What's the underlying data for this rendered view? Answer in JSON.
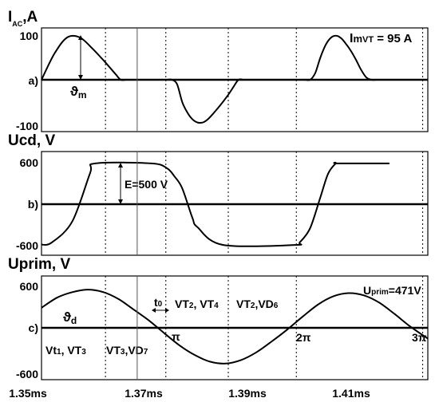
{
  "chart_data": [
    {
      "type": "line",
      "title": "I<sub>AC</sub>,A",
      "title_main": "I",
      "title_sub": "AC",
      "title_unit": ",A",
      "label": "a)",
      "yticks": [
        "100",
        "-100"
      ],
      "ylim": [
        -100,
        100
      ],
      "xlim_ms": [
        1.35,
        1.4255
      ],
      "series": [
        {
          "x_ms": [
            1.35,
            1.3525,
            1.355,
            1.3575,
            1.36,
            1.3625,
            1.3645,
            1.3655,
            1.3665,
            1.3675,
            1.3685,
            1.3695,
            1.3705,
            1.3715,
            1.3725,
            1.3735,
            1.3745,
            1.3755,
            1.3765,
            1.3775,
            1.3785,
            1.3795,
            1.3805,
            1.3815,
            1.3825,
            1.3835,
            1.3845,
            1.3855,
            1.3865,
            1.3875,
            1.3885,
            1.3895,
            1.3905,
            1.3915,
            1.3925,
            1.3935,
            1.3945,
            1.3955,
            1.3965,
            1.3975,
            1.3985,
            1.3995,
            1.4005,
            1.4015,
            1.4025,
            1.4035,
            1.4045,
            1.4055,
            1.4065,
            1.4075,
            1.4085,
            1.4095,
            1.4105,
            1.4115,
            1.4125,
            1.4135,
            1.4145,
            1.4155,
            1.4165,
            1.4175,
            1.4255
          ],
          "y": [
            0,
            57,
            93,
            93,
            68,
            38,
            12,
            0,
            0,
            0,
            0,
            0,
            0,
            0,
            0,
            0,
            0,
            0,
            -10,
            -49,
            -72,
            -87,
            -94,
            -94,
            -87,
            -75,
            -62,
            -48,
            -33,
            -16,
            0,
            0,
            0,
            0,
            0,
            0,
            0,
            0,
            0,
            0,
            0,
            0,
            0,
            0,
            0,
            15,
            49,
            76,
            92,
            97,
            92,
            79,
            63,
            43,
            21,
            5,
            0,
            0,
            0,
            0,
            0
          ]
        }
      ],
      "annotations": [
        "ϑm",
        "ImVT = 95 A"
      ],
      "ann_theta": "ϑ",
      "ann_theta_sub": "m",
      "ann_imvt_main": "I",
      "ann_imvt_m": "m",
      "ann_imvt_sub": "VT",
      "ann_imvt_rest": " = 95 A"
    },
    {
      "type": "line",
      "title": "Ucd, V",
      "label": "b)",
      "yticks": [
        "600",
        "-600"
      ],
      "ylim": [
        -600,
        600
      ],
      "xlim_ms": [
        1.35,
        1.4255
      ],
      "series": [
        {
          "x_ms": [
            1.35,
            1.352,
            1.356,
            1.3595,
            1.3605,
            1.3715,
            1.3745,
            1.376,
            1.3775,
            1.3795,
            1.3805,
            1.3855,
            1.3995,
            1.4005,
            1.4025,
            1.4045,
            1.406,
            1.4075,
            1.408,
            1.418
          ],
          "y": [
            -585,
            -555,
            -250,
            450,
            590,
            590,
            520,
            400,
            230,
            -200,
            -333,
            -590,
            -590,
            -550,
            -345,
            100,
            440,
            590,
            590,
            590
          ]
        }
      ],
      "annotations": [
        "E=500 V"
      ]
    },
    {
      "type": "line",
      "title": "Uprim, V",
      "label": "c)",
      "yticks": [
        "600",
        "-600"
      ],
      "ylim": [
        -600,
        600
      ],
      "xlim_ms": [
        1.35,
        1.4255
      ],
      "xticks": [
        "1.35ms",
        "1.37ms",
        "1.39ms",
        "1.41ms"
      ],
      "xtick_values": [
        1.35,
        1.37,
        1.39,
        1.41
      ],
      "series": [
        {
          "x_ms": [
            1.35,
            1.353,
            1.356,
            1.359,
            1.362,
            1.365,
            1.368,
            1.371,
            1.374,
            1.377,
            1.38,
            1.383,
            1.386,
            1.389,
            1.392,
            1.395,
            1.398,
            1.401,
            1.404,
            1.407,
            1.41,
            1.413,
            1.416,
            1.419,
            1.422,
            1.4255
          ],
          "y": [
            260,
            390,
            462,
            495,
            465,
            375,
            237,
            95,
            -70,
            -230,
            -355,
            -440,
            -463,
            -418,
            -318,
            -176,
            -24,
            143,
            300,
            408,
            450,
            421,
            327,
            180,
            20,
            -140
          ]
        }
      ],
      "annotations": [
        "Uprim=471V",
        "ϑd",
        "t0",
        "π",
        "2π",
        "3π",
        "VT2, VT4",
        "VT2,VD6",
        "Vt1, VT3",
        "VT3,VD7"
      ],
      "ann_uprim_main": "U",
      "ann_uprim_sub": "prim",
      "ann_uprim_rest": "=471V",
      "ann_theta": "ϑ",
      "ann_theta_sub": "d",
      "ann_t": "t",
      "ann_t_sub": "0",
      "ann_pi": "π",
      "ann_2pi": "2π",
      "ann_3pi": "3π",
      "ann_vt2vt4_a": "VT",
      "ann_vt2vt4_a_sub": "2",
      "ann_vt2vt4_b": ", VT",
      "ann_vt2vt4_b_sub": "4",
      "ann_vt2vd6_a": "VT",
      "ann_vt2vd6_a_sub": "2",
      "ann_vt2vd6_b": ",VD",
      "ann_vt2vd6_b_sub": "6",
      "ann_vt1vt3_a": "Vt",
      "ann_vt1vt3_a_sub": "1",
      "ann_vt1vt3_b": ", VT",
      "ann_vt1vt3_b_sub": "3",
      "ann_vt3vd7_a": "VT",
      "ann_vt3vd7_a_sub": "3",
      "ann_vt3vd7_b": ",VD",
      "ann_vt3vd7_b_sub": "7"
    }
  ],
  "markers_ms": [
    1.3625,
    1.3743,
    1.3865,
    1.3998,
    1.4245
  ],
  "solid_marker_ms": 1.3687
}
